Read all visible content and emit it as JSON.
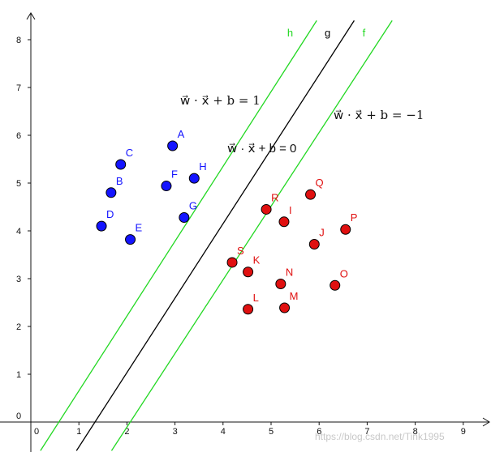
{
  "chart_data": {
    "type": "scatter",
    "xlim": [
      -0.2,
      9.4
    ],
    "ylim": [
      -0.6,
      8.4
    ],
    "x_ticks": [
      "0",
      "1",
      "2",
      "3",
      "4",
      "5",
      "6",
      "7",
      "8",
      "9"
    ],
    "y_ticks": [
      "0",
      "1",
      "2",
      "3",
      "4",
      "5",
      "6",
      "7",
      "8"
    ],
    "grid": false,
    "series": [
      {
        "color": "#1414ff",
        "points": [
          {
            "label": "A",
            "x": 2.95,
            "y": 5.78
          },
          {
            "label": "B",
            "x": 1.67,
            "y": 4.8
          },
          {
            "label": "C",
            "x": 1.87,
            "y": 5.39
          },
          {
            "label": "D",
            "x": 1.47,
            "y": 4.1
          },
          {
            "label": "E",
            "x": 2.07,
            "y": 3.82
          },
          {
            "label": "F",
            "x": 2.82,
            "y": 4.94
          },
          {
            "label": "G",
            "x": 3.19,
            "y": 4.28
          },
          {
            "label": "H",
            "x": 3.4,
            "y": 5.1
          }
        ]
      },
      {
        "color": "#e01010",
        "points": [
          {
            "label": "I",
            "x": 5.27,
            "y": 4.19
          },
          {
            "label": "J",
            "x": 5.9,
            "y": 3.72
          },
          {
            "label": "K",
            "x": 4.52,
            "y": 3.14
          },
          {
            "label": "L",
            "x": 4.52,
            "y": 2.36
          },
          {
            "label": "M",
            "x": 5.28,
            "y": 2.39
          },
          {
            "label": "N",
            "x": 5.2,
            "y": 2.89
          },
          {
            "label": "O",
            "x": 6.33,
            "y": 2.86
          },
          {
            "label": "P",
            "x": 6.55,
            "y": 4.03
          },
          {
            "label": "Q",
            "x": 5.82,
            "y": 4.76
          },
          {
            "label": "R",
            "x": 4.9,
            "y": 4.45
          },
          {
            "label": "S",
            "x": 4.19,
            "y": 3.34
          }
        ]
      }
    ],
    "lines": [
      {
        "name": "h",
        "color": "#22d822",
        "x1": 0.2,
        "y1": -0.6,
        "x2": 5.95,
        "y2": 8.4
      },
      {
        "name": "g",
        "color": "#000000",
        "x1": 0.95,
        "y1": -0.6,
        "x2": 6.73,
        "y2": 8.4
      },
      {
        "name": "f",
        "color": "#22d822",
        "x1": 1.68,
        "y1": -0.6,
        "x2": 7.52,
        "y2": 8.4
      }
    ],
    "annotations": {
      "eq_plus": "w⃗ · x⃗ + b = 1",
      "eq_zero": "w⃗ · x⃗ + b = 0",
      "eq_minus": "w⃗ · x⃗ + b = −1"
    }
  },
  "watermark": "https://blog.csdn.net/Tink1995"
}
